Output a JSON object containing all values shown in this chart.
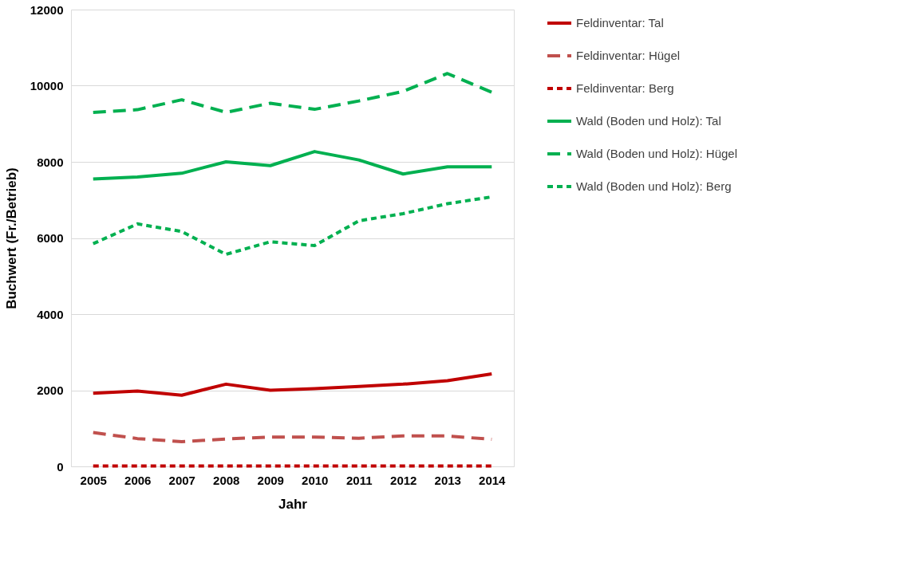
{
  "chart_data": {
    "type": "line",
    "xlabel": "Jahr",
    "ylabel": "Buchwert (Fr./Betrieb)",
    "categories": [
      "2005",
      "2006",
      "2007",
      "2008",
      "2009",
      "2010",
      "2011",
      "2012",
      "2013",
      "2014"
    ],
    "ylim": [
      0,
      12000
    ],
    "yticks": [
      0,
      2000,
      4000,
      6000,
      8000,
      10000,
      12000
    ],
    "grid": "y",
    "legend": "right",
    "marker": "none",
    "series": [
      {
        "name": "Feldinventar: Tal",
        "color": "#c00000",
        "line_style": "solid",
        "values": [
          1920,
          1980,
          1870,
          2160,
          2000,
          2040,
          2100,
          2160,
          2250,
          2430
        ]
      },
      {
        "name": "Feldinventar: Hügel",
        "color": "#c0504d",
        "line_style": "dashed",
        "values": [
          890,
          730,
          650,
          720,
          770,
          770,
          740,
          800,
          800,
          710
        ]
      },
      {
        "name": "Feldinventar: Berg",
        "color": "#c00000",
        "line_style": "dotted",
        "values": [
          10,
          10,
          10,
          10,
          10,
          10,
          10,
          10,
          10,
          10
        ]
      },
      {
        "name": "Wald (Boden und Holz): Tal",
        "color": "#00b050",
        "line_style": "solid",
        "values": [
          7550,
          7600,
          7700,
          8000,
          7900,
          8270,
          8050,
          7680,
          7870,
          7870
        ]
      },
      {
        "name": "Wald (Boden und Holz): Hügel",
        "color": "#00b050",
        "line_style": "dashed",
        "values": [
          9300,
          9370,
          9630,
          9300,
          9540,
          9380,
          9600,
          9850,
          10320,
          9830
        ]
      },
      {
        "name": "Wald (Boden und Holz): Berg",
        "color": "#00b050",
        "line_style": "dotted",
        "values": [
          5850,
          6370,
          6170,
          5570,
          5900,
          5800,
          6450,
          6640,
          6900,
          7080
        ]
      }
    ]
  }
}
